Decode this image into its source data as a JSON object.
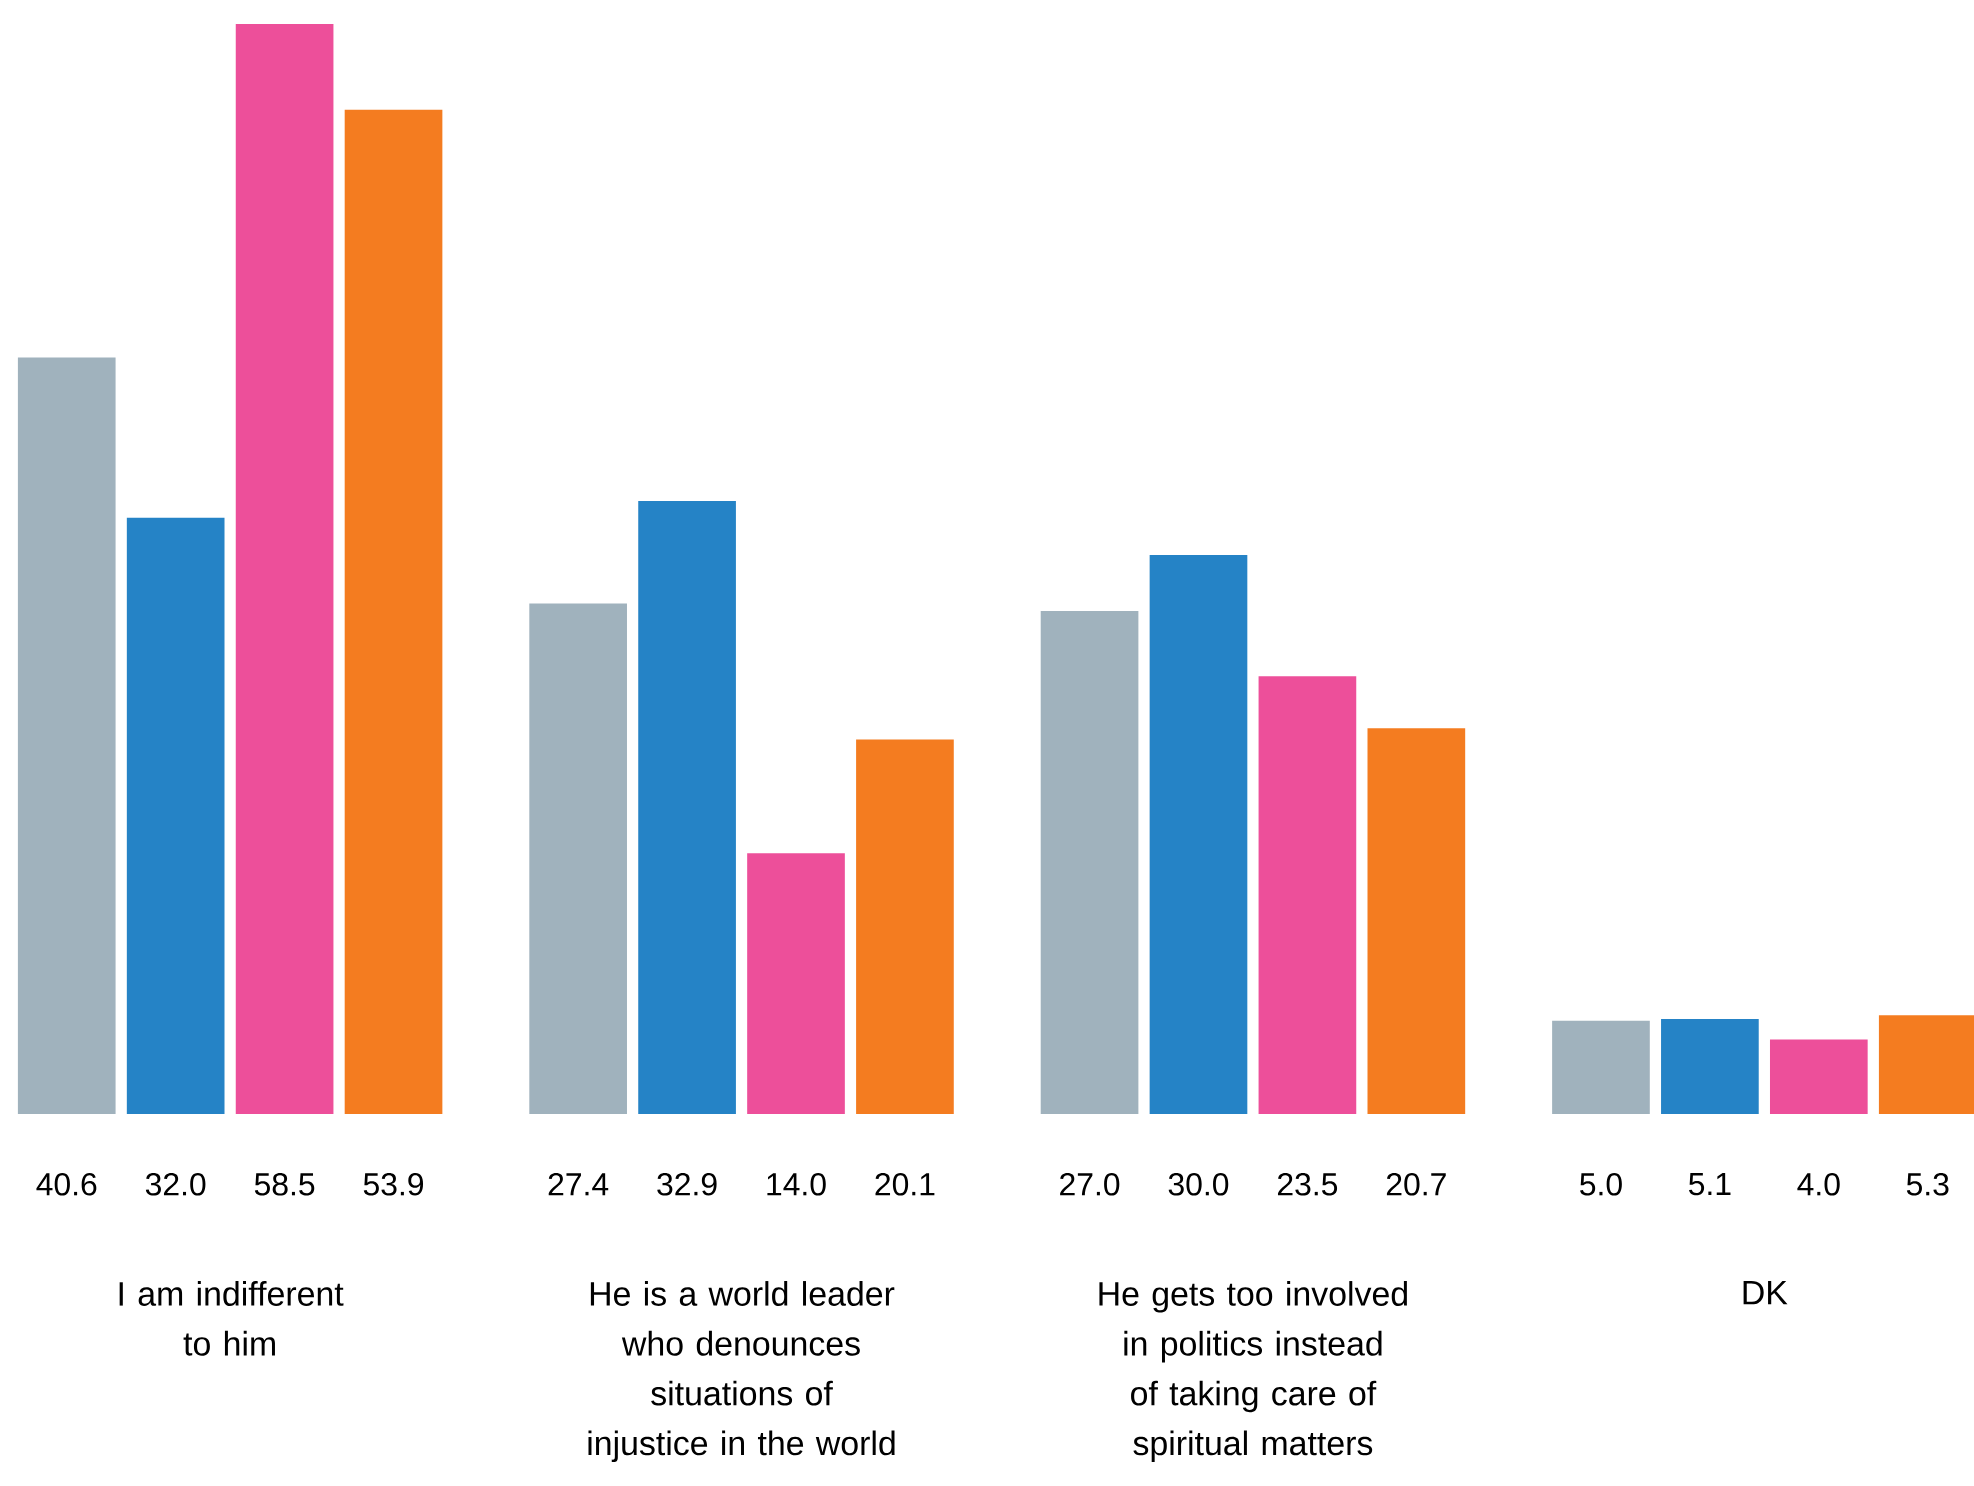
{
  "chart_data": {
    "type": "bar",
    "categories": [
      "I am indifferent to him",
      "He is a world leader who denounces situations of injustice in the world",
      "He gets too involved in politics instead of taking care of spiritual matters",
      "DK"
    ],
    "series": [
      {
        "color": "#a0b2bd",
        "values": [
          40.6,
          27.4,
          27.0,
          5.0
        ],
        "value_labels": [
          "40.6",
          "27.4",
          "27.0",
          "5.0"
        ]
      },
      {
        "color": "#2583c6",
        "values": [
          32.0,
          32.9,
          30.0,
          5.1
        ],
        "value_labels": [
          "32.0",
          "32.9",
          "30.0",
          "5.1"
        ]
      },
      {
        "color": "#ed4f9a",
        "values": [
          58.5,
          14.0,
          23.5,
          4.0
        ],
        "value_labels": [
          "58.5",
          "14.0",
          "23.5",
          "4.0"
        ]
      },
      {
        "color": "#f47c20",
        "values": [
          53.9,
          20.1,
          20.7,
          5.3
        ],
        "value_labels": [
          "53.9",
          "20.1",
          "20.7",
          "5.3"
        ]
      }
    ],
    "ylim": [
      0,
      58.5
    ]
  }
}
